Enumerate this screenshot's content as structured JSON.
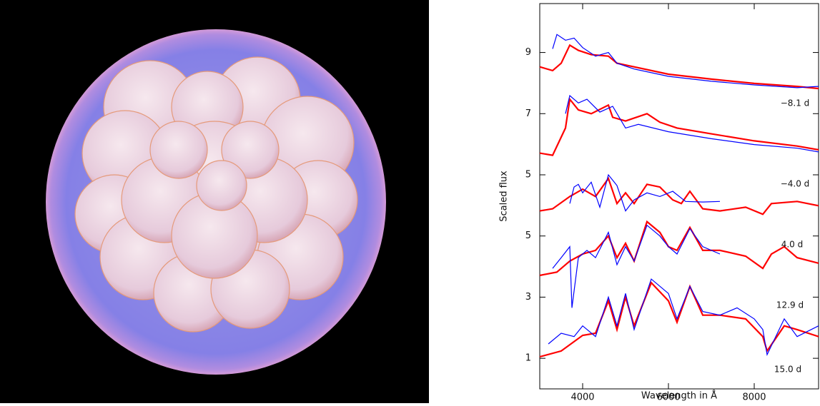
{
  "chart_data": {
    "type": "line",
    "xlabel": "Wavelength in Å",
    "ylabel": "Scaled flux",
    "xlim": [
      3000,
      9500
    ],
    "xticks": [
      4000,
      6000,
      8000
    ],
    "ylim": [
      0,
      12.6
    ],
    "yticks": [
      1,
      3,
      5,
      {
        "value": 7,
        "label": "5"
      },
      {
        "value": 9,
        "label": "7"
      },
      {
        "value": 11,
        "label": "9"
      }
    ],
    "annotations": [
      "−8.1 d",
      "−4.0 d",
      "4.0 d",
      "12.9 d",
      "15.0 d"
    ],
    "series": [
      {
        "color": "#ff0000",
        "x": [
          3000,
          3300,
          3500,
          3700,
          3900,
          4200,
          4600,
          4800,
          5200,
          6000,
          7000,
          8000,
          9000,
          9500
        ],
        "values": [
          10.53,
          10.41,
          10.65,
          11.24,
          11.07,
          10.93,
          10.88,
          10.65,
          10.53,
          10.29,
          10.13,
          9.99,
          9.89,
          9.82
        ]
      },
      {
        "color": "#0000ff",
        "x": [
          3300,
          3400,
          3600,
          3800,
          4000,
          4300,
          4600,
          4800,
          5200,
          6000,
          7000,
          8000,
          9000,
          9500
        ],
        "values": [
          11.12,
          11.59,
          11.4,
          11.47,
          11.16,
          10.88,
          11.0,
          10.65,
          10.46,
          10.22,
          10.06,
          9.94,
          9.85,
          9.89
        ]
      },
      {
        "color": "#ff0000",
        "x": [
          3000,
          3300,
          3600,
          3700,
          3900,
          4200,
          4600,
          4700,
          5000,
          5500,
          5800,
          6200,
          7000,
          8000,
          9000,
          9500
        ],
        "values": [
          7.71,
          7.64,
          8.53,
          9.47,
          9.12,
          9.0,
          9.28,
          8.88,
          8.76,
          9.0,
          8.72,
          8.53,
          8.34,
          8.11,
          7.94,
          7.82
        ]
      },
      {
        "color": "#0000ff",
        "x": [
          3600,
          3700,
          3900,
          4100,
          4400,
          4700,
          5000,
          5300,
          6000,
          7000,
          8000,
          9000,
          9500
        ],
        "values": [
          9.0,
          9.59,
          9.35,
          9.47,
          9.05,
          9.24,
          8.53,
          8.65,
          8.41,
          8.18,
          7.99,
          7.87,
          7.75
        ]
      },
      {
        "color": "#ff0000",
        "x": [
          3000,
          3300,
          3700,
          4000,
          4300,
          4600,
          4800,
          5000,
          5200,
          5500,
          5800,
          6100,
          6300,
          6500,
          6800,
          7200,
          7800,
          8200,
          8400,
          9000,
          9500
        ],
        "values": [
          5.82,
          5.89,
          6.29,
          6.53,
          6.29,
          6.88,
          6.06,
          6.41,
          6.06,
          6.69,
          6.6,
          6.18,
          6.06,
          6.46,
          5.89,
          5.82,
          5.94,
          5.71,
          6.06,
          6.13,
          5.99
        ]
      },
      {
        "color": "#0000ff",
        "x": [
          3700,
          3800,
          3900,
          4000,
          4200,
          4400,
          4600,
          4800,
          5000,
          5200,
          5500,
          5800,
          6100,
          6400,
          6800,
          7200
        ],
        "values": [
          6.06,
          6.6,
          6.69,
          6.41,
          6.76,
          5.94,
          7.0,
          6.65,
          5.82,
          6.18,
          6.41,
          6.29,
          6.46,
          6.13,
          6.11,
          6.13
        ]
      },
      {
        "color": "#ff0000",
        "x": [
          3000,
          3400,
          3700,
          4000,
          4300,
          4600,
          4800,
          5000,
          5200,
          5500,
          5800,
          6000,
          6200,
          6500,
          6800,
          7200,
          7800,
          8200,
          8400,
          8700,
          9000,
          9500
        ],
        "values": [
          3.71,
          3.82,
          4.18,
          4.41,
          4.53,
          5.0,
          4.29,
          4.76,
          4.18,
          5.47,
          5.12,
          4.65,
          4.53,
          5.28,
          4.53,
          4.53,
          4.34,
          3.94,
          4.41,
          4.65,
          4.29,
          4.11
        ]
      },
      {
        "color": "#0000ff",
        "x": [
          3300,
          3500,
          3700,
          3750,
          3900,
          4100,
          4300,
          4600,
          4800,
          5000,
          5200,
          5500,
          5800,
          6000,
          6200,
          6500,
          6800,
          7200
        ],
        "values": [
          3.94,
          4.29,
          4.65,
          2.65,
          4.29,
          4.53,
          4.29,
          5.12,
          4.06,
          4.65,
          4.18,
          5.35,
          5.0,
          4.65,
          4.41,
          5.24,
          4.65,
          4.41
        ]
      },
      {
        "color": "#ff0000",
        "x": [
          3000,
          3500,
          4000,
          4300,
          4600,
          4800,
          5000,
          5200,
          5600,
          6000,
          6200,
          6500,
          6800,
          7200,
          7800,
          8200,
          8300,
          8700,
          9000,
          9500
        ],
        "values": [
          1.05,
          1.24,
          1.75,
          1.82,
          2.88,
          1.94,
          3.0,
          2.06,
          3.47,
          2.88,
          2.18,
          3.35,
          2.41,
          2.41,
          2.29,
          1.71,
          1.24,
          2.06,
          1.94,
          1.71
        ]
      },
      {
        "color": "#0000ff",
        "x": [
          3200,
          3500,
          3800,
          4000,
          4300,
          4600,
          4800,
          5000,
          5200,
          5600,
          6000,
          6200,
          6500,
          6800,
          7200,
          7600,
          8000,
          8200,
          8300,
          8700,
          9000,
          9500
        ],
        "values": [
          1.47,
          1.82,
          1.71,
          2.06,
          1.71,
          3.0,
          2.06,
          3.12,
          1.94,
          3.59,
          3.12,
          2.29,
          3.35,
          2.53,
          2.41,
          2.65,
          2.29,
          1.94,
          1.12,
          2.29,
          1.71,
          2.06
        ]
      }
    ]
  }
}
